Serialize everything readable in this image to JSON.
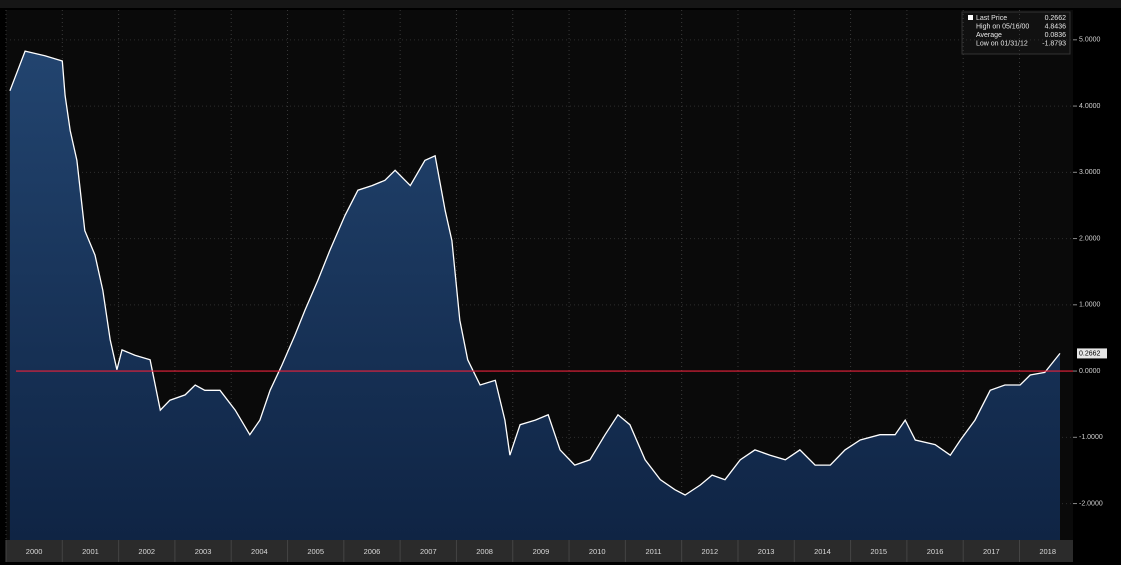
{
  "chart_data": {
    "type": "line",
    "series": [
      {
        "color": "#ffffff",
        "x": [
          2000.07,
          2000.34,
          2000.69,
          2001.0,
          2001.05,
          2001.14,
          2001.26,
          2001.4,
          2001.58,
          2001.72,
          2001.85,
          2001.97,
          2002.06,
          2002.29,
          2002.56,
          2002.74,
          2002.91,
          2003.18,
          2003.36,
          2003.53,
          2003.8,
          2004.07,
          2004.33,
          2004.51,
          2004.69,
          2004.9,
          2005.13,
          2005.31,
          2005.54,
          2005.75,
          2006.02,
          2006.25,
          2006.5,
          2006.73,
          2006.91,
          2007.18,
          2007.44,
          2007.62,
          2007.8,
          2007.92,
          2008.06,
          2008.2,
          2008.42,
          2008.69,
          2008.86,
          2008.95,
          2009.13,
          2009.4,
          2009.63,
          2009.84,
          2010.1,
          2010.37,
          2010.64,
          2010.87,
          2011.08,
          2011.35,
          2011.62,
          2011.88,
          2012.06,
          2012.33,
          2012.54,
          2012.77,
          2013.04,
          2013.3,
          2013.57,
          2013.84,
          2014.1,
          2014.37,
          2014.64,
          2014.9,
          2015.17,
          2015.52,
          2015.79,
          2015.97,
          2016.15,
          2016.5,
          2016.77,
          2016.95,
          2017.21,
          2017.48,
          2017.74,
          2018.01,
          2018.19,
          2018.45,
          2018.72
        ],
        "values": [
          4.23,
          4.83,
          4.76,
          4.68,
          4.16,
          3.63,
          3.18,
          2.12,
          1.75,
          1.22,
          0.47,
          0.02,
          0.32,
          0.24,
          0.17,
          -0.59,
          -0.44,
          -0.36,
          -0.21,
          -0.29,
          -0.29,
          -0.59,
          -0.96,
          -0.74,
          -0.29,
          0.09,
          0.54,
          0.92,
          1.37,
          1.82,
          2.35,
          2.73,
          2.8,
          2.88,
          3.03,
          2.8,
          3.18,
          3.25,
          2.42,
          1.97,
          0.77,
          0.17,
          -0.21,
          -0.14,
          -0.74,
          -1.27,
          -0.81,
          -0.74,
          -0.66,
          -1.19,
          -1.42,
          -1.34,
          -0.96,
          -0.66,
          -0.81,
          -1.34,
          -1.64,
          -1.79,
          -1.87,
          -1.72,
          -1.57,
          -1.64,
          -1.34,
          -1.19,
          -1.27,
          -1.34,
          -1.19,
          -1.42,
          -1.42,
          -1.19,
          -1.04,
          -0.96,
          -0.96,
          -0.74,
          -1.04,
          -1.11,
          -1.27,
          -1.04,
          -0.74,
          -0.29,
          -0.21,
          -0.21,
          -0.06,
          -0.02,
          0.2662
        ]
      }
    ],
    "xlim": [
      2000,
      2018.95
    ],
    "xticks": [
      2000,
      2001,
      2002,
      2003,
      2004,
      2005,
      2006,
      2007,
      2008,
      2009,
      2010,
      2011,
      2012,
      2013,
      2014,
      2015,
      2016,
      2017,
      2018
    ],
    "ylim": [
      -2.55,
      5.45
    ],
    "yticks": [
      {
        "value": 5,
        "label": "5.0000"
      },
      {
        "value": 4,
        "label": "4.0000"
      },
      {
        "value": 3,
        "label": "3.0000"
      },
      {
        "value": 2,
        "label": "2.0000"
      },
      {
        "value": 1,
        "label": "1.0000"
      },
      {
        "value": 0,
        "label": "0.0000"
      },
      {
        "value": -1,
        "label": "-1.0000"
      },
      {
        "value": -2,
        "label": "-2.0000"
      }
    ],
    "reference_line": {
      "value": 0,
      "color": "#e8203a"
    },
    "legend": [
      {
        "label": "Last Price",
        "value": 0.2662
      },
      {
        "label": "High on 05/16/00",
        "value": 4.8436
      },
      {
        "label": "Average",
        "value": 0.0836
      },
      {
        "label": "Low on 01/31/12",
        "value": -1.8793
      }
    ]
  }
}
